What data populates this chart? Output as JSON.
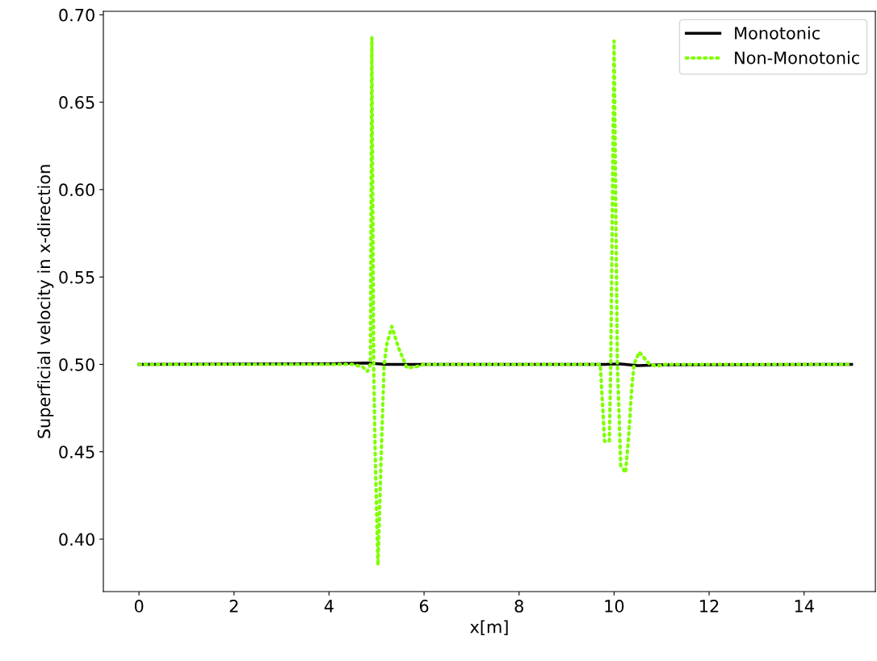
{
  "chart_data": {
    "type": "line",
    "xlabel": "x[m]",
    "ylabel": "Superficial velocity in x-direction",
    "xlim": [
      -0.75,
      15.5
    ],
    "xticks": [
      0,
      2,
      4,
      6,
      8,
      10,
      12,
      14
    ],
    "ylim": [
      0.37,
      0.702
    ],
    "yticks": [
      {
        "value": 0.4,
        "label": "0.40"
      },
      {
        "value": 0.45,
        "label": "0.45"
      },
      {
        "value": 0.5,
        "label": "0.50"
      },
      {
        "value": 0.55,
        "label": "0.55"
      },
      {
        "value": 0.6,
        "label": "0.60"
      },
      {
        "value": 0.65,
        "label": "0.65"
      },
      {
        "value": 0.7,
        "label": "0.70"
      }
    ],
    "legend": "top right",
    "grid": false,
    "series": [
      {
        "name": "Monotonic",
        "color": "#000000",
        "line_style": "solid",
        "x": [
          0,
          4.0,
          4.8,
          5.2,
          9.8,
          10.1,
          10.5,
          11.0,
          15
        ],
        "values": [
          0.5,
          0.5003,
          0.5008,
          0.5,
          0.5,
          0.5003,
          0.4993,
          0.4998,
          0.5
        ]
      },
      {
        "name": "Non-Monotonic",
        "color": "#7fff00",
        "line_style": "dotted",
        "x": [
          0,
          4.5,
          4.71,
          4.81,
          4.87,
          4.9,
          4.94,
          4.97,
          5.03,
          5.1,
          5.16,
          5.22,
          5.32,
          5.47,
          5.64,
          5.81,
          6.0,
          9.6,
          9.71,
          9.8,
          9.9,
          9.93,
          10.0,
          10.07,
          10.14,
          10.24,
          10.31,
          10.37,
          10.42,
          10.53,
          10.75,
          10.9,
          11.08,
          15
        ],
        "values": [
          0.5,
          0.5,
          0.4985,
          0.496,
          0.5,
          0.687,
          0.5,
          0.45,
          0.385,
          0.45,
          0.5,
          0.512,
          0.5217,
          0.509,
          0.498,
          0.4985,
          0.5,
          0.5,
          0.5,
          0.456,
          0.456,
          0.5,
          0.685,
          0.5,
          0.442,
          0.438,
          0.46,
          0.486,
          0.5,
          0.507,
          0.5,
          0.499,
          0.5,
          0.5
        ]
      }
    ]
  }
}
